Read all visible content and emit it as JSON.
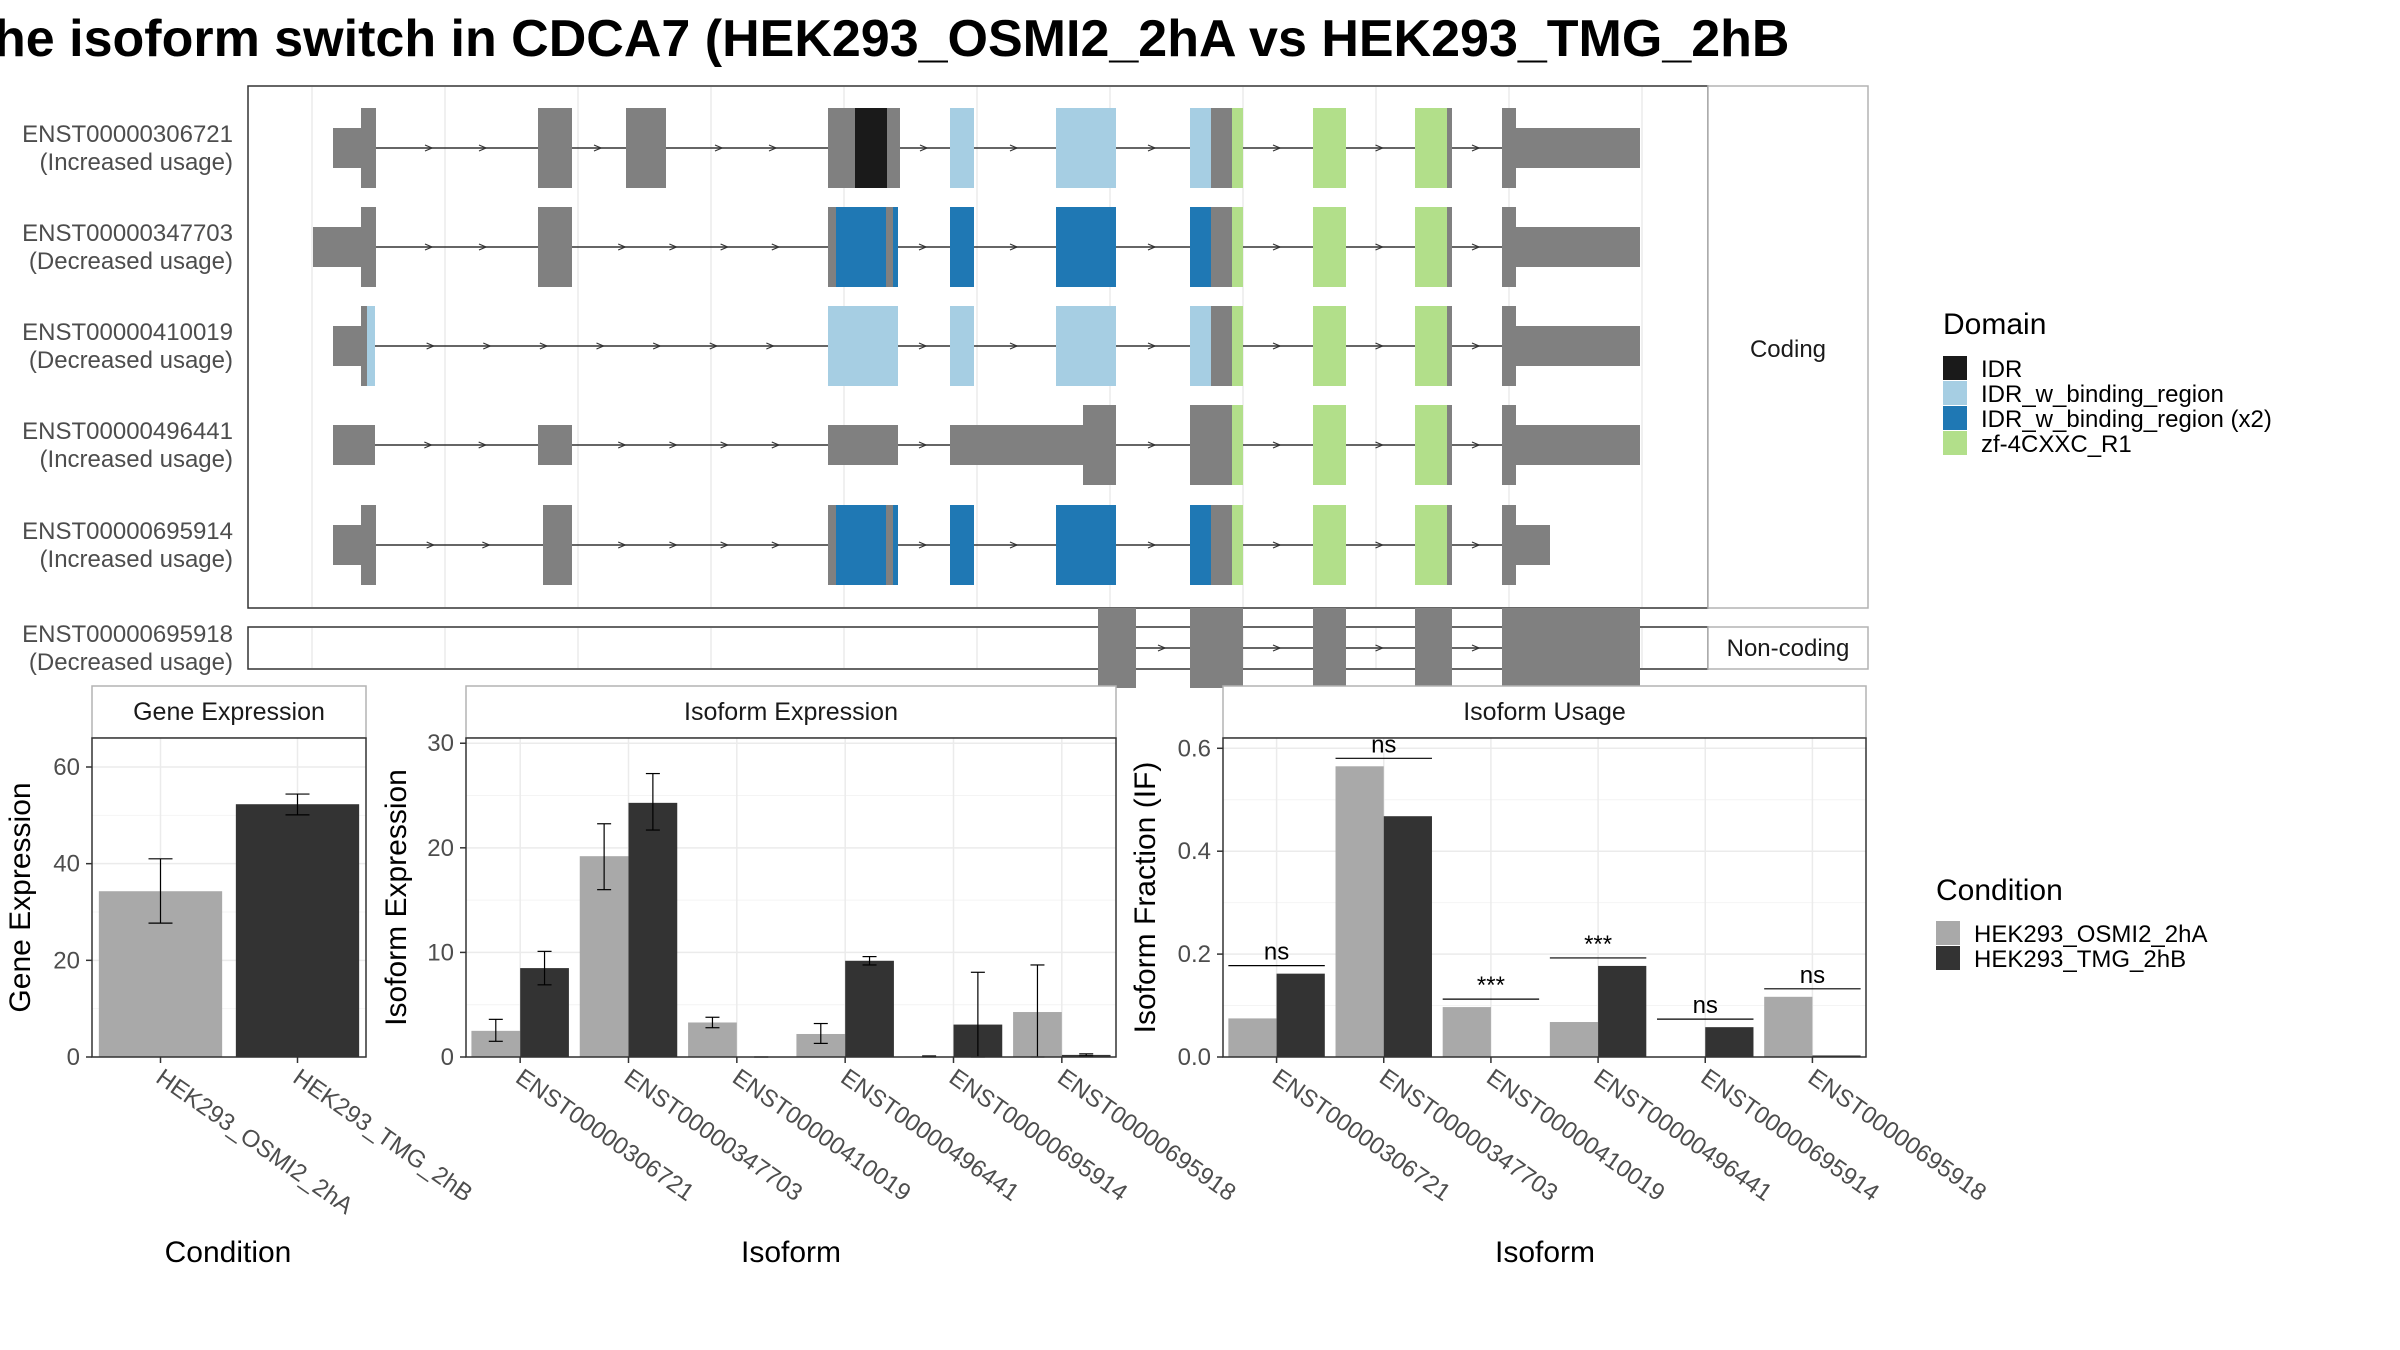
{
  "title": "he isoform switch in CDCA7 (HEK293_OSMI2_2hA vs HEK293_TMG_2hB",
  "colors": {
    "exon": "#808080",
    "IDR": "#1a1a1a",
    "IDR_w_binding_region": "#a6cee3",
    "IDR_w_binding_region_x2": "#1f78b4",
    "zf_4CXXC_R1": "#b2df8a",
    "cond_A": "#a9a9a9",
    "cond_B": "#333333",
    "panel_border": "#333333",
    "strip_border": "#b3b3b3",
    "grid": "#ebebeb"
  },
  "structure": {
    "coding_label": "Coding",
    "noncoding_label": "Non-coding",
    "transcripts": [
      {
        "id": "ENST00000306721",
        "usage": "(Increased usage)",
        "coding": true
      },
      {
        "id": "ENST00000347703",
        "usage": "(Decreased usage)",
        "coding": true
      },
      {
        "id": "ENST00000410019",
        "usage": "(Decreased usage)",
        "coding": true
      },
      {
        "id": "ENST00000496441",
        "usage": "(Increased usage)",
        "coding": true
      },
      {
        "id": "ENST00000695914",
        "usage": "(Increased usage)",
        "coding": true
      },
      {
        "id": "ENST00000695918",
        "usage": "(Decreased usage)",
        "coding": false
      }
    ]
  },
  "domain_legend": {
    "title": "Domain",
    "items": [
      {
        "label": "IDR",
        "color_key": "IDR"
      },
      {
        "label": "IDR_w_binding_region",
        "color_key": "IDR_w_binding_region"
      },
      {
        "label": "IDR_w_binding_region (x2)",
        "color_key": "IDR_w_binding_region_x2"
      },
      {
        "label": "zf-4CXXC_R1",
        "color_key": "zf_4CXXC_R1"
      }
    ]
  },
  "condition_legend": {
    "title": "Condition",
    "items": [
      {
        "label": "HEK293_OSMI2_2hA",
        "color_key": "cond_A"
      },
      {
        "label": "HEK293_TMG_2hB",
        "color_key": "cond_B"
      }
    ]
  },
  "chart_data": [
    {
      "type": "bar",
      "title": "Gene Expression",
      "xlabel": "Condition",
      "ylabel": "Gene Expression",
      "ylim": [
        0,
        66
      ],
      "yticks": [
        0,
        20,
        40,
        60
      ],
      "categories": [
        "HEK293_OSMI2_2hA",
        "HEK293_TMG_2hB"
      ],
      "values": [
        34.3,
        52.3
      ],
      "errors": [
        [
          27.7,
          41.0
        ],
        [
          50.1,
          54.4
        ]
      ]
    },
    {
      "type": "bar",
      "title": "Isoform Expression",
      "xlabel": "Isoform",
      "ylabel": "Isoform Expression",
      "ylim": [
        0,
        30.5
      ],
      "yticks": [
        0,
        10,
        20,
        30
      ],
      "categories": [
        "ENST00000306721",
        "ENST00000347703",
        "ENST00000410019",
        "ENST00000496441",
        "ENST00000695914",
        "ENST00000695918"
      ],
      "series": [
        {
          "name": "HEK293_OSMI2_2hA",
          "values": [
            2.5,
            19.2,
            3.3,
            2.2,
            0.05,
            4.3
          ],
          "errors": [
            [
              1.5,
              3.6
            ],
            [
              16.0,
              22.3
            ],
            [
              2.8,
              3.8
            ],
            [
              1.3,
              3.2
            ],
            [
              0.0,
              0.1
            ],
            [
              0.0,
              8.8
            ]
          ]
        },
        {
          "name": "HEK293_TMG_2hB",
          "values": [
            8.5,
            24.3,
            0.0,
            9.2,
            3.1,
            0.2
          ],
          "errors": [
            [
              6.9,
              10.1
            ],
            [
              21.7,
              27.1
            ],
            [
              0.0,
              0.0
            ],
            [
              8.8,
              9.6
            ],
            [
              0.0,
              8.1
            ],
            [
              0.1,
              0.3
            ]
          ]
        }
      ]
    },
    {
      "type": "bar",
      "title": "Isoform Usage",
      "xlabel": "Isoform",
      "ylabel": "Isoform Fraction (IF)",
      "ylim": [
        0,
        0.62
      ],
      "yticks": [
        "0.0",
        "0.2",
        "0.4",
        "0.6"
      ],
      "categories": [
        "ENST00000306721",
        "ENST00000347703",
        "ENST00000410019",
        "ENST00000496441",
        "ENST00000695914",
        "ENST00000695918"
      ],
      "series": [
        {
          "name": "HEK293_OSMI2_2hA",
          "values": [
            0.075,
            0.565,
            0.097,
            0.068,
            0.0,
            0.117
          ]
        },
        {
          "name": "HEK293_TMG_2hB",
          "values": [
            0.162,
            0.468,
            0.0,
            0.177,
            0.058,
            0.003
          ]
        }
      ],
      "significance": [
        "ns",
        "ns",
        "***",
        "***",
        "ns",
        "ns"
      ]
    }
  ]
}
